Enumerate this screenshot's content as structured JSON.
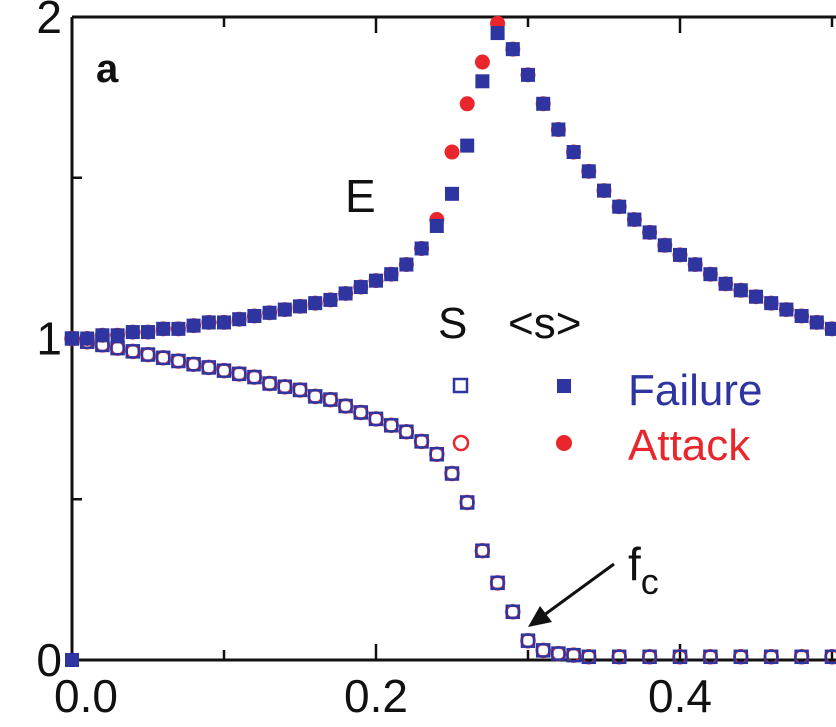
{
  "chart_data": {
    "type": "scatter",
    "panel_label": "a",
    "xlim": [
      0.0,
      0.5
    ],
    "ylim": [
      0,
      2
    ],
    "x_ticks": [
      {
        "value": 0.0,
        "label": "0.0"
      },
      {
        "value": 0.2,
        "label": "0.2"
      },
      {
        "value": 0.4,
        "label": "0.4"
      }
    ],
    "y_ticks": [
      {
        "value": 0,
        "label": "0"
      },
      {
        "value": 1,
        "label": "1"
      },
      {
        "value": 2,
        "label": "2"
      }
    ],
    "annotations": {
      "E": "E",
      "fc_main": "f",
      "fc_sub": "c",
      "fc_x": 0.29
    },
    "legend": {
      "col_S": "S",
      "col_s": "<s>",
      "rows": [
        {
          "label": "Failure",
          "color": "#2e35a0"
        },
        {
          "label": "Attack",
          "color": "#e8262b"
        }
      ]
    },
    "series": [
      {
        "name": "Failure",
        "marker": "square",
        "color": "#2e35a0",
        "S": [
          [
            0.0,
            1.0
          ],
          [
            0.01,
            0.99
          ],
          [
            0.02,
            0.98
          ],
          [
            0.03,
            0.97
          ],
          [
            0.04,
            0.96
          ],
          [
            0.05,
            0.95
          ],
          [
            0.06,
            0.94
          ],
          [
            0.07,
            0.93
          ],
          [
            0.08,
            0.92
          ],
          [
            0.09,
            0.91
          ],
          [
            0.1,
            0.9
          ],
          [
            0.11,
            0.89
          ],
          [
            0.12,
            0.88
          ],
          [
            0.13,
            0.86
          ],
          [
            0.14,
            0.85
          ],
          [
            0.15,
            0.84
          ],
          [
            0.16,
            0.82
          ],
          [
            0.17,
            0.81
          ],
          [
            0.18,
            0.79
          ],
          [
            0.19,
            0.77
          ],
          [
            0.2,
            0.75
          ],
          [
            0.21,
            0.73
          ],
          [
            0.22,
            0.71
          ],
          [
            0.23,
            0.68
          ],
          [
            0.24,
            0.64
          ],
          [
            0.25,
            0.58
          ],
          [
            0.26,
            0.49
          ],
          [
            0.27,
            0.34
          ],
          [
            0.28,
            0.24
          ],
          [
            0.29,
            0.15
          ],
          [
            0.3,
            0.06
          ],
          [
            0.31,
            0.03
          ],
          [
            0.32,
            0.02
          ],
          [
            0.33,
            0.015
          ],
          [
            0.34,
            0.01
          ],
          [
            0.36,
            0.01
          ],
          [
            0.38,
            0.01
          ],
          [
            0.4,
            0.01
          ],
          [
            0.42,
            0.01
          ],
          [
            0.44,
            0.01
          ],
          [
            0.46,
            0.01
          ],
          [
            0.48,
            0.01
          ],
          [
            0.5,
            0.01
          ]
        ],
        "s_avg": [
          [
            0.0,
            1.0
          ],
          [
            0.01,
            1.0
          ],
          [
            0.02,
            1.01
          ],
          [
            0.03,
            1.01
          ],
          [
            0.04,
            1.02
          ],
          [
            0.05,
            1.02
          ],
          [
            0.06,
            1.03
          ],
          [
            0.07,
            1.03
          ],
          [
            0.08,
            1.04
          ],
          [
            0.09,
            1.05
          ],
          [
            0.1,
            1.05
          ],
          [
            0.11,
            1.06
          ],
          [
            0.12,
            1.07
          ],
          [
            0.13,
            1.08
          ],
          [
            0.14,
            1.09
          ],
          [
            0.15,
            1.1
          ],
          [
            0.16,
            1.11
          ],
          [
            0.17,
            1.12
          ],
          [
            0.18,
            1.14
          ],
          [
            0.19,
            1.16
          ],
          [
            0.2,
            1.18
          ],
          [
            0.21,
            1.2
          ],
          [
            0.22,
            1.23
          ],
          [
            0.23,
            1.28
          ],
          [
            0.24,
            1.35
          ],
          [
            0.25,
            1.45
          ],
          [
            0.26,
            1.6
          ],
          [
            0.27,
            1.8
          ],
          [
            0.28,
            1.95
          ],
          [
            0.29,
            1.9
          ],
          [
            0.3,
            1.82
          ],
          [
            0.31,
            1.73
          ],
          [
            0.32,
            1.65
          ],
          [
            0.33,
            1.58
          ],
          [
            0.34,
            1.52
          ],
          [
            0.35,
            1.46
          ],
          [
            0.36,
            1.41
          ],
          [
            0.37,
            1.37
          ],
          [
            0.38,
            1.33
          ],
          [
            0.39,
            1.29
          ],
          [
            0.4,
            1.26
          ],
          [
            0.41,
            1.23
          ],
          [
            0.42,
            1.2
          ],
          [
            0.43,
            1.17
          ],
          [
            0.44,
            1.15
          ],
          [
            0.45,
            1.13
          ],
          [
            0.46,
            1.11
          ],
          [
            0.47,
            1.09
          ],
          [
            0.48,
            1.07
          ],
          [
            0.49,
            1.05
          ],
          [
            0.5,
            1.03
          ]
        ]
      },
      {
        "name": "Attack",
        "marker": "circle",
        "color": "#e8262b",
        "S": [
          [
            0.0,
            1.0
          ],
          [
            0.01,
            0.99
          ],
          [
            0.02,
            0.98
          ],
          [
            0.03,
            0.97
          ],
          [
            0.04,
            0.96
          ],
          [
            0.05,
            0.95
          ],
          [
            0.06,
            0.94
          ],
          [
            0.07,
            0.93
          ],
          [
            0.08,
            0.92
          ],
          [
            0.09,
            0.91
          ],
          [
            0.1,
            0.9
          ],
          [
            0.11,
            0.89
          ],
          [
            0.12,
            0.88
          ],
          [
            0.13,
            0.86
          ],
          [
            0.14,
            0.85
          ],
          [
            0.15,
            0.84
          ],
          [
            0.16,
            0.82
          ],
          [
            0.17,
            0.81
          ],
          [
            0.18,
            0.79
          ],
          [
            0.19,
            0.77
          ],
          [
            0.2,
            0.75
          ],
          [
            0.21,
            0.73
          ],
          [
            0.22,
            0.71
          ],
          [
            0.23,
            0.68
          ],
          [
            0.24,
            0.64
          ],
          [
            0.25,
            0.58
          ],
          [
            0.26,
            0.49
          ],
          [
            0.27,
            0.34
          ],
          [
            0.28,
            0.24
          ],
          [
            0.29,
            0.15
          ],
          [
            0.3,
            0.06
          ],
          [
            0.31,
            0.03
          ],
          [
            0.32,
            0.02
          ],
          [
            0.33,
            0.015
          ],
          [
            0.34,
            0.01
          ],
          [
            0.36,
            0.01
          ],
          [
            0.38,
            0.01
          ],
          [
            0.4,
            0.01
          ],
          [
            0.42,
            0.01
          ],
          [
            0.44,
            0.01
          ],
          [
            0.46,
            0.01
          ],
          [
            0.48,
            0.01
          ],
          [
            0.5,
            0.01
          ]
        ],
        "s_avg": [
          [
            0.0,
            1.0
          ],
          [
            0.01,
            1.0
          ],
          [
            0.02,
            1.01
          ],
          [
            0.03,
            1.01
          ],
          [
            0.04,
            1.02
          ],
          [
            0.05,
            1.02
          ],
          [
            0.06,
            1.03
          ],
          [
            0.07,
            1.03
          ],
          [
            0.08,
            1.04
          ],
          [
            0.09,
            1.05
          ],
          [
            0.1,
            1.05
          ],
          [
            0.11,
            1.06
          ],
          [
            0.12,
            1.07
          ],
          [
            0.13,
            1.08
          ],
          [
            0.14,
            1.09
          ],
          [
            0.15,
            1.1
          ],
          [
            0.16,
            1.11
          ],
          [
            0.17,
            1.12
          ],
          [
            0.18,
            1.14
          ],
          [
            0.19,
            1.16
          ],
          [
            0.2,
            1.18
          ],
          [
            0.21,
            1.2
          ],
          [
            0.22,
            1.23
          ],
          [
            0.23,
            1.28
          ],
          [
            0.24,
            1.37
          ],
          [
            0.25,
            1.58
          ],
          [
            0.26,
            1.73
          ],
          [
            0.27,
            1.86
          ],
          [
            0.28,
            1.98
          ],
          [
            0.29,
            1.9
          ],
          [
            0.3,
            1.82
          ],
          [
            0.31,
            1.73
          ],
          [
            0.32,
            1.65
          ],
          [
            0.33,
            1.58
          ],
          [
            0.34,
            1.52
          ],
          [
            0.35,
            1.46
          ],
          [
            0.36,
            1.41
          ],
          [
            0.37,
            1.37
          ],
          [
            0.38,
            1.33
          ],
          [
            0.39,
            1.29
          ],
          [
            0.4,
            1.26
          ],
          [
            0.41,
            1.23
          ],
          [
            0.42,
            1.2
          ],
          [
            0.43,
            1.17
          ],
          [
            0.44,
            1.15
          ],
          [
            0.45,
            1.13
          ],
          [
            0.46,
            1.11
          ],
          [
            0.47,
            1.09
          ],
          [
            0.48,
            1.07
          ],
          [
            0.49,
            1.05
          ],
          [
            0.5,
            1.03
          ]
        ]
      }
    ]
  }
}
